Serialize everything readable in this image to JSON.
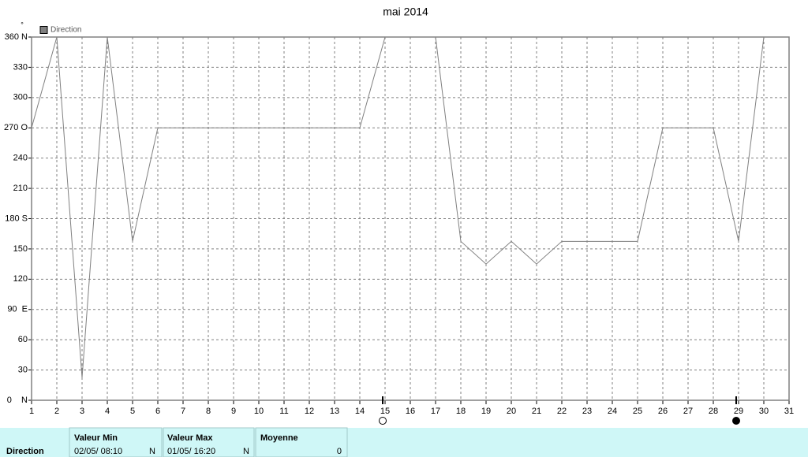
{
  "chart_data": {
    "type": "line",
    "title": "mai 2014",
    "y_unit": "°",
    "x": [
      1,
      2,
      3,
      4,
      5,
      6,
      7,
      8,
      9,
      10,
      11,
      12,
      13,
      14,
      15,
      16,
      17,
      18,
      19,
      20,
      21,
      22,
      23,
      24,
      25,
      26,
      27,
      28,
      29,
      30,
      31
    ],
    "series": [
      {
        "name": "Direction",
        "color": "#808080",
        "values": [
          270,
          360,
          22.5,
          360,
          157.5,
          270,
          270,
          270,
          270,
          270,
          270,
          270,
          270,
          270,
          360,
          360,
          360,
          157.5,
          135,
          157.5,
          135,
          157.5,
          157.5,
          157.5,
          157.5,
          270,
          270,
          270,
          157.5,
          360,
          null
        ]
      }
    ],
    "xlim": [
      1,
      31
    ],
    "xticks": [
      1,
      2,
      3,
      4,
      5,
      6,
      7,
      8,
      9,
      10,
      11,
      12,
      13,
      14,
      15,
      16,
      17,
      18,
      19,
      20,
      21,
      22,
      23,
      24,
      25,
      26,
      27,
      28,
      29,
      30,
      31
    ],
    "ylim": [
      0,
      360
    ],
    "yticks": [
      {
        "value": 0,
        "label": "0    N"
      },
      30,
      60,
      {
        "value": 90,
        "label": "90  E"
      },
      120,
      150,
      {
        "value": 180,
        "label": "180 S"
      },
      210,
      240,
      {
        "value": 270,
        "label": "270 O"
      },
      300,
      330,
      {
        "value": 360,
        "label": "360 N"
      }
    ],
    "grid": true,
    "legend": "top-left"
  },
  "stats": {
    "row_label": "Direction",
    "min": {
      "header": "Valeur Min",
      "date": "02/05/  08:10",
      "value": "N"
    },
    "max": {
      "header": "Valeur Max",
      "date": "01/05/  16:20",
      "value": "N"
    },
    "mean": {
      "header": "Moyenne",
      "value": "0"
    }
  }
}
